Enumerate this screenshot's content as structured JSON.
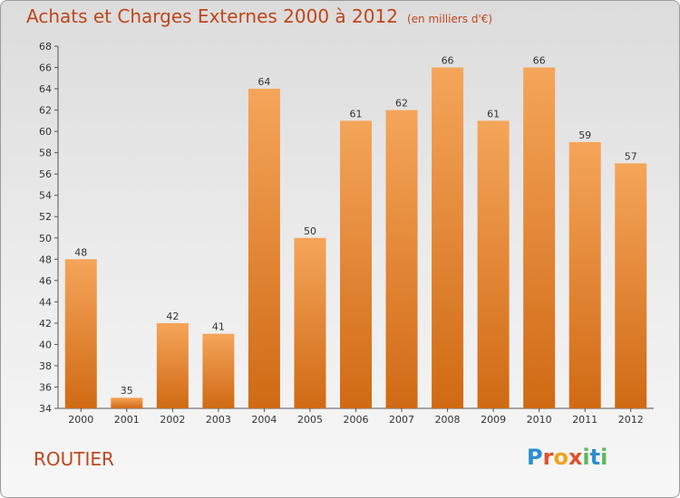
{
  "header": {
    "title": "Achats et Charges Externes 2000 à 2012",
    "unit": "(en milliers d'€)"
  },
  "footer": {
    "commune": "ROUTIER",
    "logo": [
      "P",
      "r",
      "o",
      "x",
      "i",
      "t",
      "i"
    ]
  },
  "colors": {
    "title": "#c0461b",
    "bar_top": "#f5a55a",
    "bar_bottom": "#d06a14",
    "axis": "#555555"
  },
  "chart_data": {
    "type": "bar",
    "categories": [
      "2000",
      "2001",
      "2002",
      "2003",
      "2004",
      "2005",
      "2006",
      "2007",
      "2008",
      "2009",
      "2010",
      "2011",
      "2012"
    ],
    "values": [
      48,
      35,
      42,
      41,
      64,
      50,
      61,
      62,
      66,
      61,
      66,
      59,
      57
    ],
    "ylim": [
      34,
      68
    ],
    "yticks": [
      34,
      36,
      38,
      40,
      42,
      44,
      46,
      48,
      50,
      52,
      54,
      56,
      58,
      60,
      62,
      64,
      66,
      68
    ],
    "grid": false,
    "title": "Achats et Charges Externes 2000 à 2012"
  }
}
